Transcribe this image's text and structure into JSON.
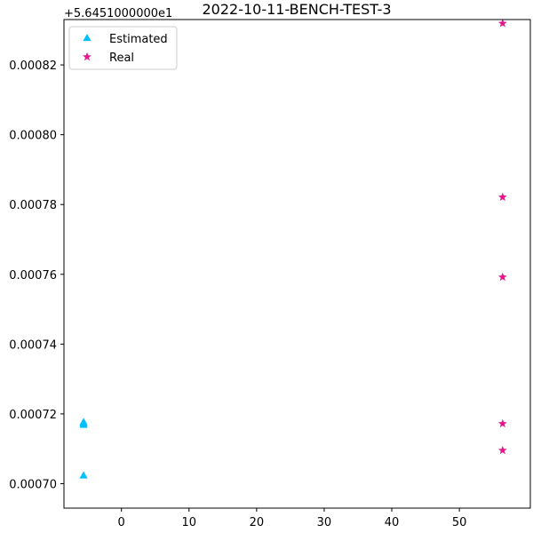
{
  "chart_data": {
    "type": "scatter",
    "title": "2022-10-11-BENCH-TEST-3",
    "xlabel": "",
    "ylabel": "",
    "y_offset_label": "+5.6451000000e1",
    "xlim": [
      -8.5,
      60.5
    ],
    "ylim": [
      0.000693,
      0.000833
    ],
    "x_ticks": [
      0,
      10,
      20,
      30,
      40,
      50
    ],
    "x_tick_labels": [
      "0",
      "10",
      "20",
      "30",
      "40",
      "50"
    ],
    "y_ticks": [
      0.0007,
      0.00072,
      0.00074,
      0.00076,
      0.00078,
      0.0008,
      0.00082
    ],
    "y_tick_labels": [
      "0.00070",
      "0.00072",
      "0.00074",
      "0.00076",
      "0.00078",
      "0.00080",
      "0.00082"
    ],
    "grid": false,
    "legend_position": "top-left",
    "series": [
      {
        "name": "Estimated",
        "marker": "triangle",
        "color": "#00bfff",
        "points": [
          {
            "x": -5.6,
            "y": 0.0007023
          },
          {
            "x": -5.6,
            "y": 0.0007168
          },
          {
            "x": -5.6,
            "y": 0.0007172
          },
          {
            "x": -5.6,
            "y": 0.0007176
          }
        ]
      },
      {
        "name": "Real",
        "marker": "star",
        "color": "#e6168c",
        "points": [
          {
            "x": 56.4,
            "y": 0.00070955
          },
          {
            "x": 56.4,
            "y": 0.0007172
          },
          {
            "x": 56.4,
            "y": 0.0007592
          },
          {
            "x": 56.4,
            "y": 0.0007821
          },
          {
            "x": 56.4,
            "y": 0.0008319
          }
        ]
      }
    ]
  }
}
